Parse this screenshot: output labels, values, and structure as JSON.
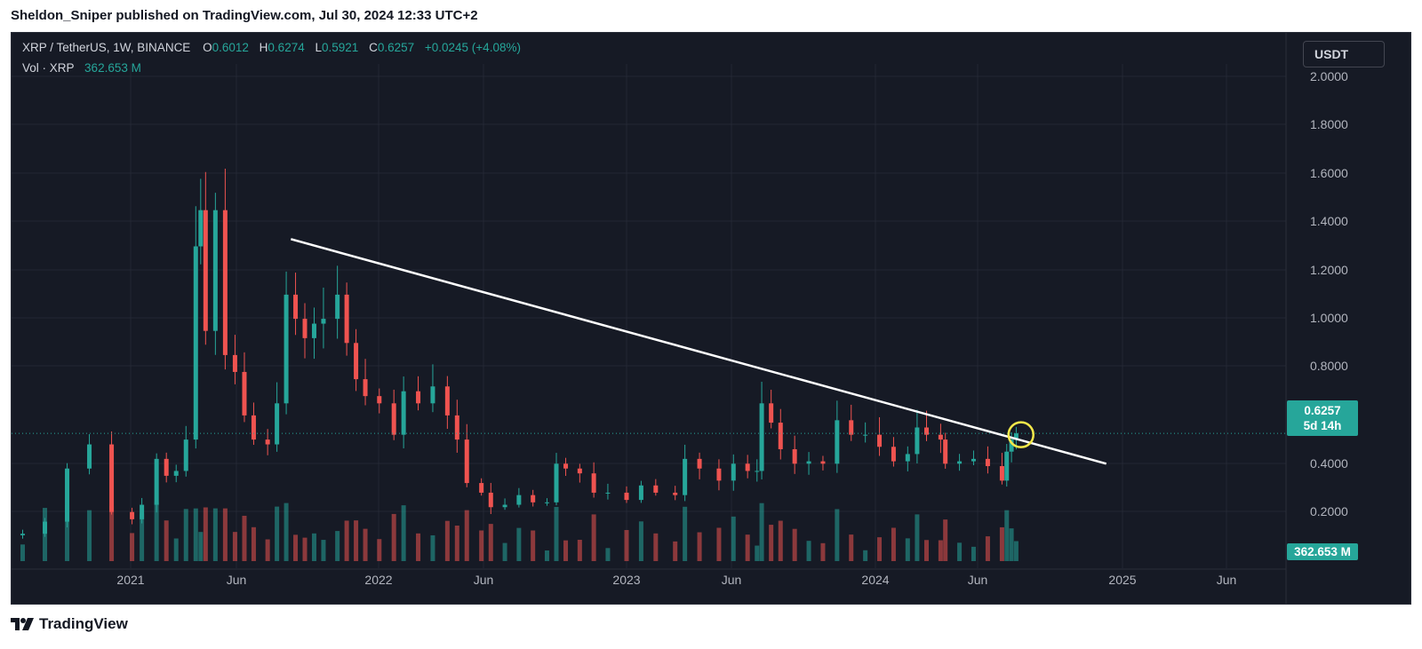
{
  "header": {
    "published_line": "Sheldon_Sniper published on TradingView.com, Jul 30, 2024 12:33 UTC+2"
  },
  "legend": {
    "symbol": "XRP / TetherUS, 1W, BINANCE",
    "open_label": "O",
    "open": "0.6012",
    "high_label": "H",
    "high": "0.6274",
    "low_label": "L",
    "low": "0.5921",
    "close_label": "C",
    "close": "0.6257",
    "change": "+0.0245 (+4.08%)",
    "volume_label": "Vol · XRP",
    "volume": "362.653 M"
  },
  "currency_button": "USDT",
  "price_tag": {
    "price": "0.6257",
    "countdown": "5d 14h"
  },
  "volume_tag": "362.653 M",
  "footer": {
    "brand": "TradingView"
  },
  "colors": {
    "up": "#26a69a",
    "down": "#ef5350",
    "trendline": "#ffffff",
    "highlight_circle": "#f5e94a",
    "background": "#161a25",
    "grid": "#232733"
  },
  "chart_data": {
    "type": "candlestick",
    "title": "XRP / TetherUS, 1W, BINANCE",
    "x_tick_labels": [
      "2021",
      "Jun",
      "2022",
      "Jun",
      "2023",
      "Jun",
      "2024",
      "Jun",
      "2025",
      "Jun"
    ],
    "y_tick_labels": [
      "2.0000",
      "1.8000",
      "1.6000",
      "1.4000",
      "1.2000",
      "1.0000",
      "0.8000",
      "0.4000",
      "0.2000"
    ],
    "ylim": [
      0.05,
      2.08
    ],
    "y_scale": "linear",
    "grid": true,
    "last_close": 0.6257,
    "series": [
      {
        "name": "XRP / TetherUS",
        "points": [
          {
            "date": "2020-10-25",
            "close": 0.21
          },
          {
            "date": "2020-11-08",
            "close": 0.26
          },
          {
            "date": "2020-11-22",
            "close": 0.48
          },
          {
            "date": "2020-12-06",
            "close": 0.58
          },
          {
            "date": "2020-12-20",
            "close": 0.3
          },
          {
            "date": "2021-01-03",
            "close": 0.27
          },
          {
            "date": "2021-01-17",
            "close": 0.33
          },
          {
            "date": "2021-02-07",
            "close": 0.52
          },
          {
            "date": "2021-02-21",
            "close": 0.45
          },
          {
            "date": "2021-03-07",
            "close": 0.47
          },
          {
            "date": "2021-03-21",
            "close": 0.6
          },
          {
            "date": "2021-04-04",
            "close": 1.4
          },
          {
            "date": "2021-04-11",
            "close": 1.55
          },
          {
            "date": "2021-04-18",
            "close": 1.05
          },
          {
            "date": "2021-05-02",
            "close": 1.55
          },
          {
            "date": "2021-05-16",
            "close": 0.95
          },
          {
            "date": "2021-05-30",
            "close": 0.88
          },
          {
            "date": "2021-06-13",
            "close": 0.7
          },
          {
            "date": "2021-06-27",
            "close": 0.6
          },
          {
            "date": "2021-07-18",
            "close": 0.58
          },
          {
            "date": "2021-08-01",
            "close": 0.75
          },
          {
            "date": "2021-08-15",
            "close": 1.2
          },
          {
            "date": "2021-08-29",
            "close": 1.1
          },
          {
            "date": "2021-09-12",
            "close": 1.02
          },
          {
            "date": "2021-09-26",
            "close": 1.08
          },
          {
            "date": "2021-10-10",
            "close": 1.1
          },
          {
            "date": "2021-10-31",
            "close": 1.2
          },
          {
            "date": "2021-11-14",
            "close": 1.0
          },
          {
            "date": "2021-11-28",
            "close": 0.85
          },
          {
            "date": "2021-12-12",
            "close": 0.78
          },
          {
            "date": "2022-01-02",
            "close": 0.75
          },
          {
            "date": "2022-01-23",
            "close": 0.62
          },
          {
            "date": "2022-02-06",
            "close": 0.8
          },
          {
            "date": "2022-02-27",
            "close": 0.75
          },
          {
            "date": "2022-03-20",
            "close": 0.82
          },
          {
            "date": "2022-04-10",
            "close": 0.7
          },
          {
            "date": "2022-04-24",
            "close": 0.6
          },
          {
            "date": "2022-05-08",
            "close": 0.42
          },
          {
            "date": "2022-05-29",
            "close": 0.38
          },
          {
            "date": "2022-06-12",
            "close": 0.32
          },
          {
            "date": "2022-07-03",
            "close": 0.33
          },
          {
            "date": "2022-07-24",
            "close": 0.37
          },
          {
            "date": "2022-08-14",
            "close": 0.34
          },
          {
            "date": "2022-09-04",
            "close": 0.34
          },
          {
            "date": "2022-09-18",
            "close": 0.5
          },
          {
            "date": "2022-10-02",
            "close": 0.48
          },
          {
            "date": "2022-10-23",
            "close": 0.46
          },
          {
            "date": "2022-11-13",
            "close": 0.38
          },
          {
            "date": "2022-12-04",
            "close": 0.38
          },
          {
            "date": "2023-01-01",
            "close": 0.35
          },
          {
            "date": "2023-01-22",
            "close": 0.41
          },
          {
            "date": "2023-02-12",
            "close": 0.38
          },
          {
            "date": "2023-03-12",
            "close": 0.37
          },
          {
            "date": "2023-03-26",
            "close": 0.52
          },
          {
            "date": "2023-04-16",
            "close": 0.48
          },
          {
            "date": "2023-05-14",
            "close": 0.43
          },
          {
            "date": "2023-06-04",
            "close": 0.5
          },
          {
            "date": "2023-06-25",
            "close": 0.47
          },
          {
            "date": "2023-07-09",
            "close": 0.47
          },
          {
            "date": "2023-07-16",
            "close": 0.75
          },
          {
            "date": "2023-07-30",
            "close": 0.67
          },
          {
            "date": "2023-08-13",
            "close": 0.56
          },
          {
            "date": "2023-09-03",
            "close": 0.5
          },
          {
            "date": "2023-09-24",
            "close": 0.51
          },
          {
            "date": "2023-10-15",
            "close": 0.5
          },
          {
            "date": "2023-11-05",
            "close": 0.68
          },
          {
            "date": "2023-11-26",
            "close": 0.62
          },
          {
            "date": "2023-12-17",
            "close": 0.62
          },
          {
            "date": "2024-01-07",
            "close": 0.57
          },
          {
            "date": "2024-01-28",
            "close": 0.51
          },
          {
            "date": "2024-02-18",
            "close": 0.54
          },
          {
            "date": "2024-03-03",
            "close": 0.65
          },
          {
            "date": "2024-03-17",
            "close": 0.62
          },
          {
            "date": "2024-04-07",
            "close": 0.6
          },
          {
            "date": "2024-04-14",
            "close": 0.5
          },
          {
            "date": "2024-05-05",
            "close": 0.51
          },
          {
            "date": "2024-05-26",
            "close": 0.52
          },
          {
            "date": "2024-06-16",
            "close": 0.49
          },
          {
            "date": "2024-07-07",
            "close": 0.43
          },
          {
            "date": "2024-07-14",
            "close": 0.55
          },
          {
            "date": "2024-07-21",
            "close": 0.6
          },
          {
            "date": "2024-07-28",
            "close": 0.6257
          }
        ]
      }
    ],
    "volume_series": {
      "name": "Vol · XRP",
      "last": "362.653 M"
    },
    "annotations": [
      {
        "type": "trendline",
        "start": {
          "date": "2021-08-22",
          "price": 1.43
        },
        "end": {
          "date": "2024-12-08",
          "price": 0.5
        }
      },
      {
        "type": "circle",
        "center": {
          "date": "2024-08-04",
          "price": 0.62
        }
      }
    ]
  }
}
